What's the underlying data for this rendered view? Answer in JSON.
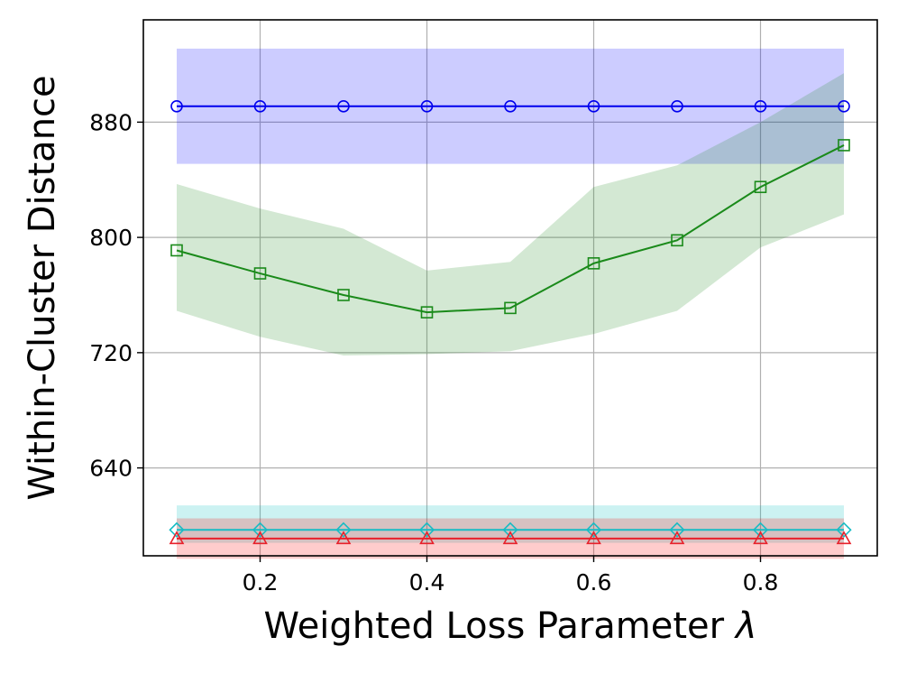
{
  "chart_data": {
    "type": "line",
    "title": "",
    "xlabel": "Weighted Loss Parameter",
    "xlabel_symbol": "λ",
    "ylabel": "Within-Cluster Distance",
    "x": [
      0.1,
      0.2,
      0.3,
      0.4,
      0.5,
      0.6,
      0.7,
      0.8,
      0.9
    ],
    "xlim": [
      0.06,
      0.94
    ],
    "ylim": [
      579,
      951
    ],
    "xticks": [
      0.2,
      0.4,
      0.6,
      0.8
    ],
    "xtick_labels": [
      "0.2",
      "0.4",
      "0.6",
      "0.8"
    ],
    "yticks": [
      640,
      720,
      800,
      880
    ],
    "ytick_labels": [
      "640",
      "720",
      "800",
      "880"
    ],
    "grid": true,
    "legend": "none",
    "series": [
      {
        "name": "blue",
        "color": "#0000ee",
        "marker": "circle",
        "values": [
          891,
          891,
          891,
          891,
          891,
          891,
          891,
          891,
          891
        ],
        "band_low": [
          851,
          851,
          851,
          851,
          851,
          851,
          851,
          851,
          851
        ],
        "band_high": [
          931,
          931,
          931,
          931,
          931,
          931,
          931,
          931,
          931
        ],
        "band_color": "#0000ff",
        "band_opacity": 0.2
      },
      {
        "name": "green",
        "color": "#1a8a1a",
        "marker": "square",
        "values": [
          791,
          775,
          760,
          748,
          751,
          782,
          798,
          835,
          864
        ],
        "band_low": [
          749,
          731,
          718,
          719,
          721,
          733,
          749,
          793,
          816
        ],
        "band_high": [
          837,
          820,
          806,
          777,
          783,
          835,
          850,
          880,
          914
        ],
        "band_color": "#228b22",
        "band_opacity": 0.2
      },
      {
        "name": "cyan",
        "color": "#17bcc4",
        "marker": "diamond",
        "values": [
          597,
          597,
          597,
          597,
          597,
          597,
          597,
          597,
          597
        ],
        "band_low": [
          588,
          588,
          588,
          588,
          588,
          588,
          588,
          588,
          588
        ],
        "band_high": [
          614,
          614,
          614,
          614,
          614,
          614,
          614,
          614,
          614
        ],
        "band_color": "#00bfbf",
        "band_opacity": 0.2
      },
      {
        "name": "red",
        "color": "#e8212b",
        "marker": "triangle",
        "values": [
          591,
          591,
          591,
          591,
          591,
          591,
          591,
          591,
          591
        ],
        "band_low": [
          577,
          577,
          577,
          577,
          577,
          577,
          577,
          577,
          577
        ],
        "band_high": [
          605,
          605,
          605,
          605,
          605,
          605,
          605,
          605,
          605
        ],
        "band_color": "#ff0000",
        "band_opacity": 0.2
      }
    ]
  }
}
